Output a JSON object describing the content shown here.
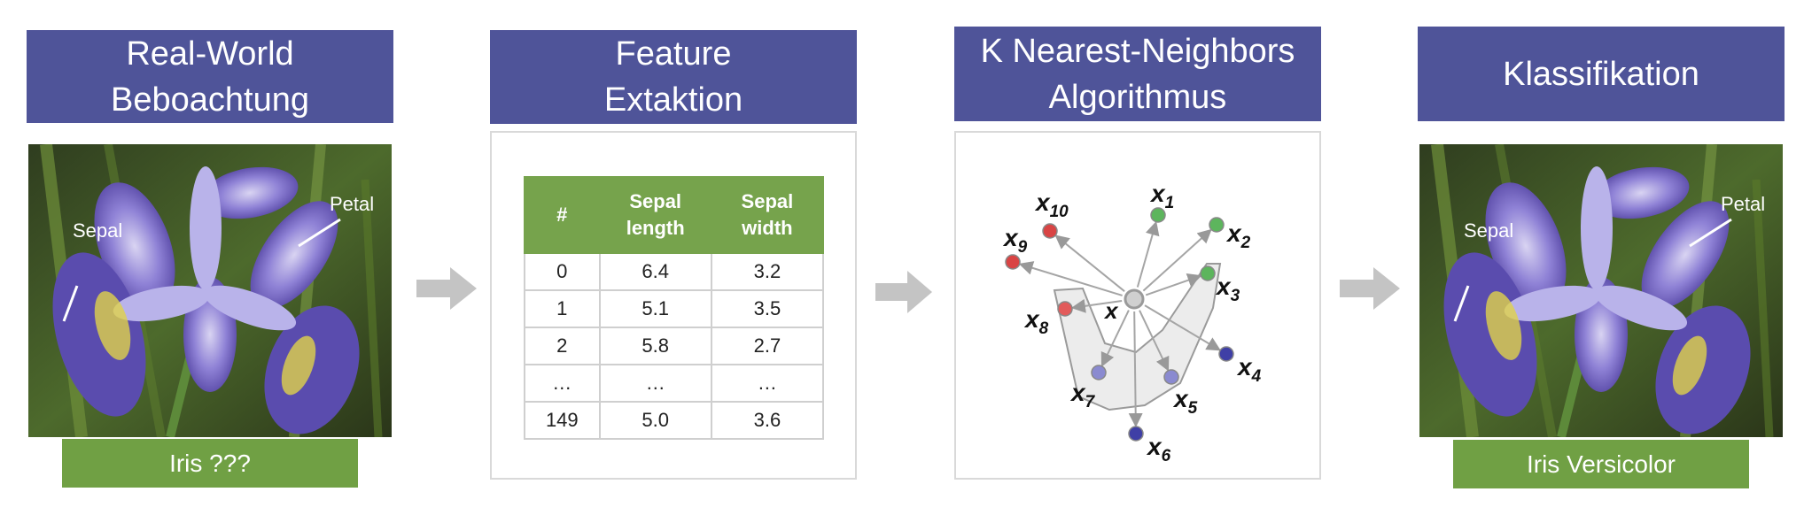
{
  "steps": [
    {
      "title_line1": "Real-World",
      "title_line2": "Beboachtung"
    },
    {
      "title_line1": "Feature",
      "title_line2": "Extaktion"
    },
    {
      "title_line1": "K Nearest-Neighbors",
      "title_line2": "Algorithmus"
    },
    {
      "title_line1": "Klassifikation",
      "title_line2": ""
    }
  ],
  "photo_labels": {
    "sepal": "Sepal",
    "petal": "Petal"
  },
  "input_label": "Iris ???",
  "output_label": "Iris Versicolor",
  "table": {
    "headers": [
      "#",
      "Sepal length",
      "Sepal width"
    ],
    "rows": [
      [
        "0",
        "6.4",
        "3.2"
      ],
      [
        "1",
        "5.1",
        "3.5"
      ],
      [
        "2",
        "5.8",
        "2.7"
      ],
      [
        "…",
        "…",
        "…"
      ],
      [
        "149",
        "5.0",
        "3.6"
      ]
    ]
  },
  "knn": {
    "query_label": "x",
    "points": [
      {
        "name": "x",
        "sub": "1",
        "color": "#5db55d"
      },
      {
        "name": "x",
        "sub": "2",
        "color": "#5db55d"
      },
      {
        "name": "x",
        "sub": "3",
        "color": "#5db55d"
      },
      {
        "name": "x",
        "sub": "4",
        "color": "#3f3fa6"
      },
      {
        "name": "x",
        "sub": "5",
        "color": "#8a8ad0"
      },
      {
        "name": "x",
        "sub": "6",
        "color": "#3f3fa6"
      },
      {
        "name": "x",
        "sub": "7",
        "color": "#8a8ad0"
      },
      {
        "name": "x",
        "sub": "8",
        "color": "#e25b5b"
      },
      {
        "name": "x",
        "sub": "9",
        "color": "#d94444"
      },
      {
        "name": "x",
        "sub": "10",
        "color": "#d94444"
      }
    ]
  },
  "colors": {
    "header": "#4f5499",
    "label": "#70a044",
    "table_header": "#76a34c",
    "arrow": "#c4c4c4"
  }
}
